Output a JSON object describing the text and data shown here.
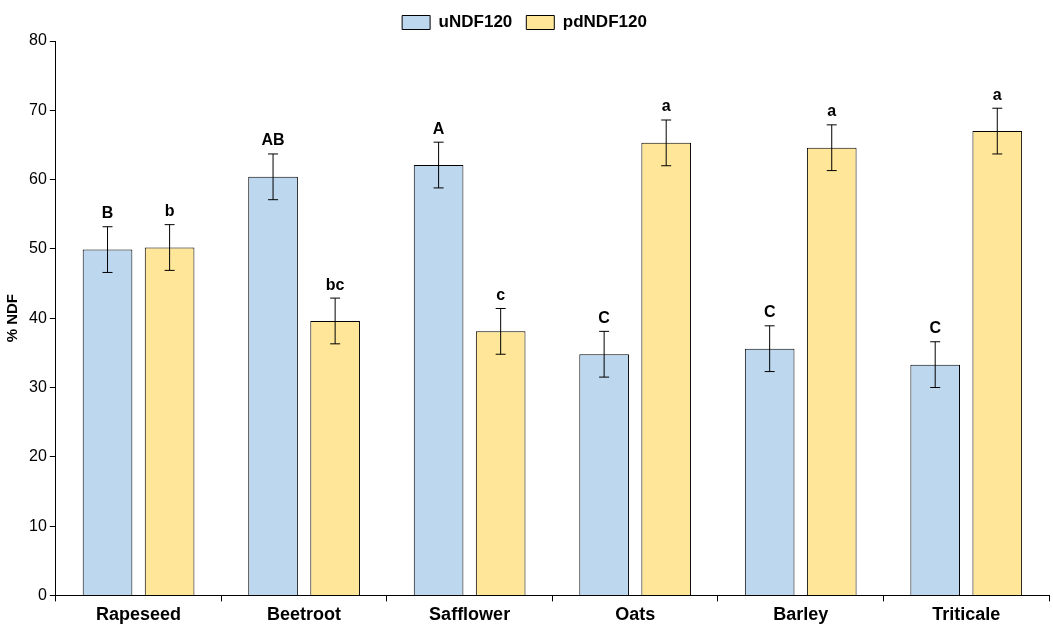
{
  "chart_data": {
    "type": "bar",
    "ylabel": "% NDF",
    "categories": [
      "Rapeseed",
      "Beetroot",
      "Safflower",
      "Oats",
      "Barley",
      "Triticale"
    ],
    "series": [
      {
        "name": "uNDF120",
        "color": "#bdd7ee",
        "values": [
          49.9,
          60.4,
          62.1,
          34.8,
          35.6,
          33.3
        ],
        "errors": [
          3.3,
          3.3,
          3.3,
          3.3,
          3.3,
          3.3
        ],
        "value_labels": [
          "B",
          "AB",
          "A",
          "C",
          "C",
          "C"
        ]
      },
      {
        "name": "pdNDF120",
        "color": "#ffe699",
        "values": [
          50.2,
          39.6,
          38.1,
          65.3,
          64.6,
          67.0
        ],
        "errors": [
          3.3,
          3.3,
          3.3,
          3.3,
          3.3,
          3.3
        ],
        "value_labels": [
          "b",
          "bc",
          "c",
          "a",
          "a",
          "a"
        ]
      }
    ],
    "ylim": [
      0,
      80
    ],
    "yticks": [
      0,
      10,
      20,
      30,
      40,
      50,
      60,
      70,
      80
    ],
    "grid": false,
    "legend": "top"
  }
}
